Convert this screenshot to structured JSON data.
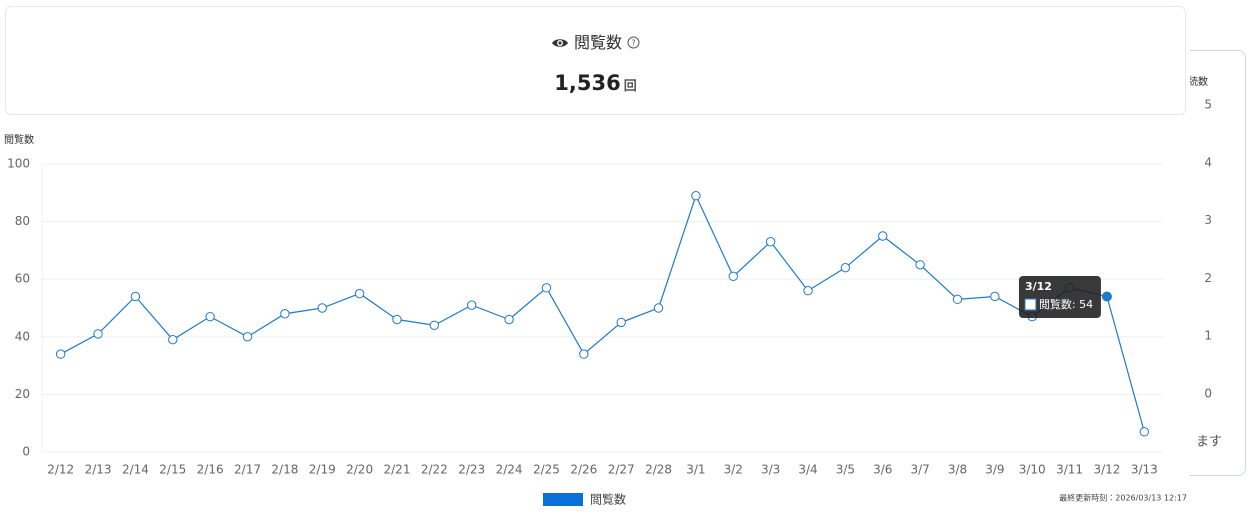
{
  "card": {
    "title": "閲覧数",
    "value": "1,536",
    "unit": "回"
  },
  "chart_data": {
    "type": "line",
    "y_label": "閲覧数",
    "categories": [
      "2/12",
      "2/13",
      "2/14",
      "2/15",
      "2/16",
      "2/17",
      "2/18",
      "2/19",
      "2/20",
      "2/21",
      "2/22",
      "2/23",
      "2/24",
      "2/25",
      "2/26",
      "2/27",
      "2/28",
      "3/1",
      "3/2",
      "3/3",
      "3/4",
      "3/5",
      "3/6",
      "3/7",
      "3/8",
      "3/9",
      "3/10",
      "3/11",
      "3/12",
      "3/13"
    ],
    "series": [
      {
        "name": "閲覧数",
        "color": "#1f7ac9",
        "values": [
          34,
          41,
          54,
          39,
          47,
          40,
          48,
          50,
          55,
          46,
          44,
          51,
          46,
          57,
          34,
          45,
          50,
          89,
          61,
          73,
          56,
          64,
          75,
          65,
          53,
          54,
          47,
          57,
          54,
          7
        ]
      }
    ],
    "ylim": [
      0,
      100
    ],
    "yticks": [
      0,
      20,
      40,
      60,
      80,
      100
    ],
    "grid": true,
    "highlight_index": 28,
    "tooltip": {
      "title": "3/12",
      "label": "閲覧数: 54"
    },
    "legend_color": "#0b6fd8"
  },
  "footer": "最終更新時刻：2026/03/13 12:17",
  "side_panel": {
    "title": "読数",
    "ylim": [
      0,
      5
    ],
    "yticks": [
      0,
      1,
      2,
      3,
      4,
      5
    ],
    "message": "ます"
  }
}
